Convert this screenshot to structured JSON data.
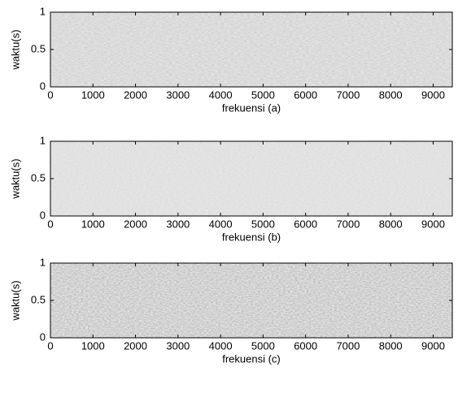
{
  "chart_data": [
    {
      "type": "spectrogram",
      "xlabel": "frekuensi  (a)",
      "ylabel": "waktu(s)",
      "xlim": [
        0,
        9450
      ],
      "xticks": [
        0,
        1000,
        2000,
        3000,
        4000,
        5000,
        6000,
        7000,
        8000,
        9000
      ],
      "ylim": [
        0,
        1
      ],
      "yticks": [
        0,
        0.5,
        1
      ]
    },
    {
      "type": "spectrogram",
      "xlabel": "frekuensi  (b)",
      "ylabel": "waktu(s)",
      "xlim": [
        0,
        9450
      ],
      "xticks": [
        0,
        1000,
        2000,
        3000,
        4000,
        5000,
        6000,
        7000,
        8000,
        9000
      ],
      "ylim": [
        0,
        1
      ],
      "yticks": [
        0,
        0.5,
        1
      ]
    },
    {
      "type": "spectrogram",
      "xlabel": "frekuensi  (c)",
      "ylabel": "waktu(s)",
      "xlim": [
        0,
        9450
      ],
      "xticks": [
        0,
        1000,
        2000,
        3000,
        4000,
        5000,
        6000,
        7000,
        8000,
        9000
      ],
      "ylim": [
        0,
        1
      ],
      "yticks": [
        0,
        0.5,
        1
      ]
    }
  ]
}
